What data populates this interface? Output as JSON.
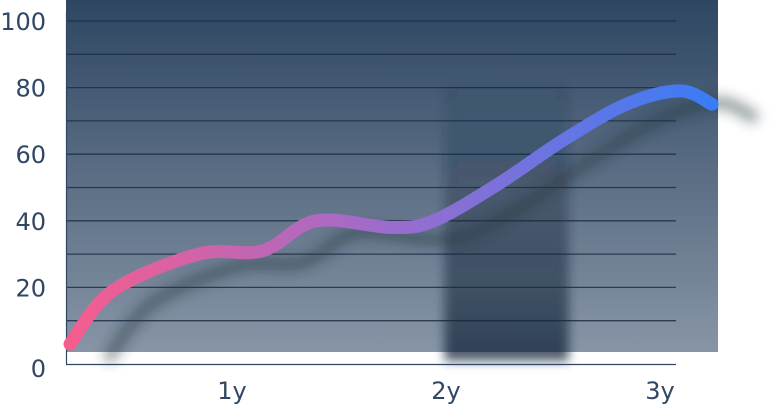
{
  "chart_data": {
    "type": "line",
    "title": "",
    "xlabel": "",
    "ylabel": "",
    "ylim": [
      0,
      100
    ],
    "xlim": [
      0,
      3
    ],
    "yticks": [
      0,
      20,
      40,
      60,
      80,
      100
    ],
    "xticks": [
      {
        "value": 1,
        "label": "1y"
      },
      {
        "value": 2,
        "label": "2y"
      },
      {
        "value": 3,
        "label": "3y"
      }
    ],
    "grid": true,
    "legend": "none",
    "highlight_band": {
      "x_start": 1.75,
      "x_end": 2.33
    },
    "series": [
      {
        "x": [
          0,
          0.2,
          0.6,
          0.9,
          1.15,
          1.5,
          1.7,
          2.0,
          2.3,
          2.6,
          2.85,
          3.0
        ],
        "values": [
          3,
          19,
          30,
          31,
          40,
          38,
          40,
          51,
          64,
          75,
          79,
          75
        ]
      }
    ],
    "colors": {
      "line_start": "#f65d8f",
      "line_mid": "#9b6ccd",
      "line_end": "#3a7cf5",
      "bg_top": "#2e4662",
      "bg_bottom": "#8795a6",
      "grid": "#1d2e45",
      "band": "#14253a",
      "tick_text": "#2f4764"
    }
  }
}
